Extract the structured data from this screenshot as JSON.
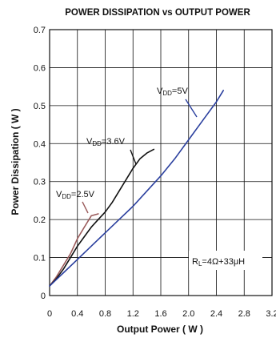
{
  "chart_data": {
    "type": "line",
    "title": "POWER DISSIPATION vs OUTPUT POWER",
    "xlabel": "Output Power ( W )",
    "ylabel": "Power Dissipation ( W )",
    "xlim": [
      0,
      3.2
    ],
    "ylim": [
      0,
      0.7
    ],
    "xticks": [
      "0",
      "0.4",
      "0.8",
      "1.2",
      "1.6",
      "2.0",
      "2.4",
      "2.8",
      "3.2"
    ],
    "yticks": [
      "0",
      "0.1",
      "0.2",
      "0.3",
      "0.4",
      "0.5",
      "0.6",
      "0.7"
    ],
    "grid": true,
    "series": [
      {
        "name": "VDD=2.5V",
        "label_main": "V",
        "label_sub": "DD",
        "label_rest": "=2.5V",
        "color": "#9a5a5a",
        "x": [
          0,
          0.1,
          0.2,
          0.3,
          0.4,
          0.5,
          0.6,
          0.7
        ],
        "y": [
          0.025,
          0.05,
          0.08,
          0.11,
          0.15,
          0.18,
          0.21,
          0.215
        ]
      },
      {
        "name": "VDD=3.6V",
        "label_main": "V",
        "label_sub": "DD",
        "label_rest": "=3.6V",
        "color": "#111111",
        "x": [
          0,
          0.1,
          0.2,
          0.3,
          0.4,
          0.5,
          0.6,
          0.7,
          0.8,
          0.9,
          1.0,
          1.1,
          1.2,
          1.3,
          1.4,
          1.5
        ],
        "y": [
          0.025,
          0.045,
          0.07,
          0.1,
          0.13,
          0.155,
          0.18,
          0.2,
          0.22,
          0.245,
          0.275,
          0.305,
          0.335,
          0.36,
          0.375,
          0.385
        ]
      },
      {
        "name": "VDD=5V",
        "label_main": "V",
        "label_sub": "DD",
        "label_rest": "=5V",
        "color": "#2a3f9e",
        "x": [
          0,
          0.2,
          0.4,
          0.6,
          0.8,
          1.0,
          1.2,
          1.4,
          1.6,
          1.8,
          2.0,
          2.2,
          2.4,
          2.5
        ],
        "y": [
          0.025,
          0.06,
          0.095,
          0.13,
          0.165,
          0.2,
          0.235,
          0.275,
          0.315,
          0.36,
          0.41,
          0.46,
          0.51,
          0.54
        ]
      }
    ],
    "annotation": {
      "main": "R",
      "sub": "L",
      "rest": "=4Ω+33μH"
    }
  }
}
